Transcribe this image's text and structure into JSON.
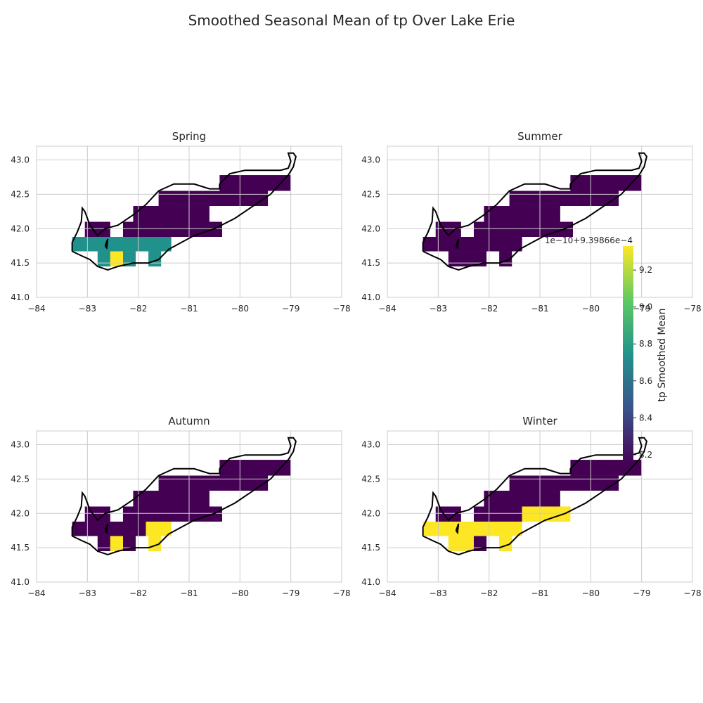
{
  "suptitle": "Smoothed Seasonal Mean of tp Over Lake Erie",
  "colorbar": {
    "label": "tp Smoothed Mean",
    "offset_text": "1e−10+9.39866e−4",
    "ticks": [
      "8.2",
      "8.4",
      "8.6",
      "8.8",
      "9.0",
      "9.2"
    ],
    "tick_values": [
      8.2,
      8.4,
      8.6,
      8.8,
      9.0,
      9.2
    ],
    "range": [
      8.15,
      9.33
    ],
    "colormap": "viridis"
  },
  "colors": {
    "low": "#440154",
    "mid": "#21918c",
    "high": "#fde725",
    "grid": "#cccccc",
    "coast": "#000000"
  },
  "chart_data": [
    {
      "type": "heatmap",
      "title": "Spring",
      "xlim": [
        -84,
        -78
      ],
      "ylim": [
        41.0,
        43.2
      ],
      "xticks": [
        "−84",
        "−83",
        "−82",
        "−81",
        "−80",
        "−79",
        "−78"
      ],
      "yticks": [
        "41.0",
        "41.5",
        "42.0",
        "42.5",
        "43.0"
      ],
      "grid": true,
      "values_encoding": "0 = low (~8.2), 1 = mid (~8.75), 2 = high (~9.3)",
      "cells": [
        {
          "lon": [
            -80.4,
            -79.0
          ],
          "lat": [
            42.55,
            42.78
          ],
          "level": 0
        },
        {
          "lon": [
            -81.6,
            -79.45
          ],
          "lat": [
            42.33,
            42.55
          ],
          "level": 0
        },
        {
          "lon": [
            -82.1,
            -80.6
          ],
          "lat": [
            42.1,
            42.33
          ],
          "level": 0
        },
        {
          "lon": [
            -83.05,
            -82.55
          ],
          "lat": [
            41.88,
            42.1
          ],
          "level": 0
        },
        {
          "lon": [
            -82.3,
            -80.35
          ],
          "lat": [
            41.88,
            42.1
          ],
          "level": 0
        },
        {
          "lon": [
            -83.3,
            -81.35
          ],
          "lat": [
            41.67,
            41.88
          ],
          "level": 1
        },
        {
          "lon": [
            -82.8,
            -82.55
          ],
          "lat": [
            41.45,
            41.67
          ],
          "level": 1
        },
        {
          "lon": [
            -82.3,
            -82.05
          ],
          "lat": [
            41.45,
            41.67
          ],
          "level": 1
        },
        {
          "lon": [
            -81.8,
            -81.55
          ],
          "lat": [
            41.45,
            41.67
          ],
          "level": 1
        },
        {
          "lon": [
            -82.55,
            -82.3
          ],
          "lat": [
            41.45,
            41.67
          ],
          "level": 2
        }
      ]
    },
    {
      "type": "heatmap",
      "title": "Summer",
      "xlim": [
        -84,
        -78
      ],
      "ylim": [
        41.0,
        43.2
      ],
      "xticks": [
        "−84",
        "−83",
        "−82",
        "−81",
        "−80",
        "−79",
        "−78"
      ],
      "yticks": [
        "41.0",
        "41.5",
        "42.0",
        "42.5",
        "43.0"
      ],
      "grid": true,
      "cells": [
        {
          "lon": [
            -80.4,
            -79.0
          ],
          "lat": [
            42.55,
            42.78
          ],
          "level": 0
        },
        {
          "lon": [
            -81.6,
            -79.45
          ],
          "lat": [
            42.33,
            42.55
          ],
          "level": 0
        },
        {
          "lon": [
            -82.1,
            -80.6
          ],
          "lat": [
            42.1,
            42.33
          ],
          "level": 0
        },
        {
          "lon": [
            -83.05,
            -82.55
          ],
          "lat": [
            41.88,
            42.1
          ],
          "level": 0
        },
        {
          "lon": [
            -82.3,
            -80.35
          ],
          "lat": [
            41.88,
            42.1
          ],
          "level": 0
        },
        {
          "lon": [
            -83.3,
            -81.35
          ],
          "lat": [
            41.67,
            41.88
          ],
          "level": 0
        },
        {
          "lon": [
            -82.8,
            -82.05
          ],
          "lat": [
            41.45,
            41.67
          ],
          "level": 0
        },
        {
          "lon": [
            -81.8,
            -81.55
          ],
          "lat": [
            41.45,
            41.67
          ],
          "level": 0
        }
      ]
    },
    {
      "type": "heatmap",
      "title": "Autumn",
      "xlim": [
        -84,
        -78
      ],
      "ylim": [
        41.0,
        43.2
      ],
      "xticks": [
        "−84",
        "−83",
        "−82",
        "−81",
        "−80",
        "−79",
        "−78"
      ],
      "yticks": [
        "41.0",
        "41.5",
        "42.0",
        "42.5",
        "43.0"
      ],
      "grid": true,
      "cells": [
        {
          "lon": [
            -80.4,
            -79.0
          ],
          "lat": [
            42.55,
            42.78
          ],
          "level": 0
        },
        {
          "lon": [
            -81.6,
            -79.45
          ],
          "lat": [
            42.33,
            42.55
          ],
          "level": 0
        },
        {
          "lon": [
            -82.1,
            -80.6
          ],
          "lat": [
            42.1,
            42.33
          ],
          "level": 0
        },
        {
          "lon": [
            -83.05,
            -82.55
          ],
          "lat": [
            41.88,
            42.1
          ],
          "level": 0
        },
        {
          "lon": [
            -82.3,
            -80.35
          ],
          "lat": [
            41.88,
            42.1
          ],
          "level": 0
        },
        {
          "lon": [
            -83.3,
            -81.85
          ],
          "lat": [
            41.67,
            41.88
          ],
          "level": 0
        },
        {
          "lon": [
            -82.8,
            -82.55
          ],
          "lat": [
            41.45,
            41.67
          ],
          "level": 0
        },
        {
          "lon": [
            -82.3,
            -82.05
          ],
          "lat": [
            41.45,
            41.67
          ],
          "level": 0
        },
        {
          "lon": [
            -81.85,
            -81.35
          ],
          "lat": [
            41.67,
            41.88
          ],
          "level": 2
        },
        {
          "lon": [
            -81.8,
            -81.55
          ],
          "lat": [
            41.45,
            41.67
          ],
          "level": 2
        },
        {
          "lon": [
            -82.55,
            -82.3
          ],
          "lat": [
            41.45,
            41.67
          ],
          "level": 2
        }
      ]
    },
    {
      "type": "heatmap",
      "title": "Winter",
      "xlim": [
        -84,
        -78
      ],
      "ylim": [
        41.0,
        43.2
      ],
      "xticks": [
        "−84",
        "−83",
        "−82",
        "−81",
        "−80",
        "−79",
        "−78"
      ],
      "yticks": [
        "41.0",
        "41.5",
        "42.0",
        "42.5",
        "43.0"
      ],
      "grid": true,
      "cells": [
        {
          "lon": [
            -80.4,
            -79.0
          ],
          "lat": [
            42.55,
            42.78
          ],
          "level": 0
        },
        {
          "lon": [
            -81.6,
            -79.45
          ],
          "lat": [
            42.33,
            42.55
          ],
          "level": 0
        },
        {
          "lon": [
            -82.1,
            -80.6
          ],
          "lat": [
            42.1,
            42.33
          ],
          "level": 0
        },
        {
          "lon": [
            -83.05,
            -82.55
          ],
          "lat": [
            41.88,
            42.1
          ],
          "level": 0
        },
        {
          "lon": [
            -82.3,
            -81.35
          ],
          "lat": [
            41.88,
            42.1
          ],
          "level": 0
        },
        {
          "lon": [
            -81.35,
            -80.4
          ],
          "lat": [
            41.88,
            42.1
          ],
          "level": 2
        },
        {
          "lon": [
            -83.3,
            -81.35
          ],
          "lat": [
            41.67,
            41.88
          ],
          "level": 2
        },
        {
          "lon": [
            -82.8,
            -82.3
          ],
          "lat": [
            41.45,
            41.67
          ],
          "level": 2
        },
        {
          "lon": [
            -82.3,
            -82.05
          ],
          "lat": [
            41.45,
            41.67
          ],
          "level": 0
        },
        {
          "lon": [
            -81.8,
            -81.55
          ],
          "lat": [
            41.45,
            41.67
          ],
          "level": 2
        }
      ]
    }
  ]
}
